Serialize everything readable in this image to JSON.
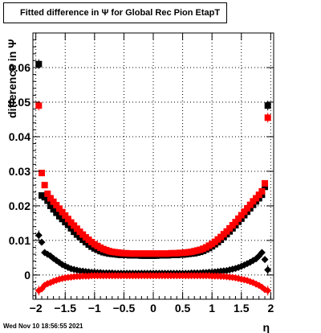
{
  "title": "Fitted difference in Ψ for Global Rec Pion EtapT",
  "footer": "Wed Nov 10 18:56:55 2021",
  "chart_data": {
    "type": "scatter",
    "title": "Fitted difference in Ψ for Global Rec Pion EtapT",
    "xlabel": "η",
    "ylabel": "difference in Ψ",
    "xlim": [
      -2.05,
      2.05
    ],
    "ylim": [
      -0.007,
      0.07
    ],
    "grid": true,
    "x_ticks": [
      -2,
      -1.5,
      -1,
      -0.5,
      0,
      0.5,
      1,
      1.5,
      2
    ],
    "x_tick_labels": [
      "−2",
      "−1.5",
      "−1",
      "−0.5",
      "0",
      "0.5",
      "1",
      "1.5",
      "2"
    ],
    "y_ticks": [
      0,
      0.01,
      0.02,
      0.03,
      0.04,
      0.05,
      0.06
    ],
    "y_tick_labels": [
      "0",
      "0.01",
      "0.02",
      "0.03",
      "0.04",
      "0.05",
      "0.06"
    ],
    "series": [
      {
        "color": "#000000",
        "marker": "square",
        "x": [
          -1.95,
          -1.9,
          -1.85,
          -1.8,
          -1.75,
          -1.7,
          -1.65,
          -1.6,
          -1.55,
          -1.5,
          -1.45,
          -1.4,
          -1.35,
          -1.3,
          -1.25,
          -1.2,
          -1.15,
          -1.1,
          -1.05,
          -1.0,
          -0.95,
          -0.9,
          -0.85,
          -0.8,
          -0.75,
          -0.7,
          -0.65,
          -0.6,
          -0.55,
          -0.5,
          -0.45,
          -0.4,
          -0.35,
          -0.3,
          -0.25,
          -0.2,
          -0.15,
          -0.1,
          -0.05,
          0.0,
          0.05,
          0.1,
          0.15,
          0.2,
          0.25,
          0.3,
          0.35,
          0.4,
          0.45,
          0.5,
          0.55,
          0.6,
          0.65,
          0.7,
          0.75,
          0.8,
          0.85,
          0.9,
          0.95,
          1.0,
          1.05,
          1.1,
          1.15,
          1.2,
          1.25,
          1.3,
          1.35,
          1.4,
          1.45,
          1.5,
          1.55,
          1.6,
          1.65,
          1.7,
          1.75,
          1.8,
          1.85,
          1.9,
          1.95
        ],
        "y": [
          0.061,
          0.023,
          0.0225,
          0.0215,
          0.02,
          0.019,
          0.018,
          0.017,
          0.0162,
          0.0153,
          0.0145,
          0.0135,
          0.0125,
          0.0117,
          0.011,
          0.0102,
          0.0095,
          0.0088,
          0.0082,
          0.0077,
          0.0073,
          0.0069,
          0.0066,
          0.0064,
          0.0062,
          0.0061,
          0.006,
          0.0059,
          0.0058,
          0.0058,
          0.0058,
          0.0057,
          0.0057,
          0.0057,
          0.0057,
          0.0056,
          0.0056,
          0.0056,
          0.0056,
          0.0056,
          0.0056,
          0.0057,
          0.0057,
          0.0057,
          0.0057,
          0.0058,
          0.0058,
          0.0058,
          0.0059,
          0.0059,
          0.006,
          0.0061,
          0.0062,
          0.0063,
          0.0065,
          0.0067,
          0.007,
          0.0074,
          0.0078,
          0.0083,
          0.0089,
          0.0095,
          0.0102,
          0.011,
          0.0118,
          0.0126,
          0.0135,
          0.0144,
          0.0154,
          0.0163,
          0.0173,
          0.0183,
          0.0193,
          0.0203,
          0.0213,
          0.0222,
          0.0232,
          0.0255,
          0.049
        ]
      },
      {
        "color": "#ff0000",
        "marker": "square",
        "x": [
          -1.95,
          -1.9,
          -1.85,
          -1.8,
          -1.75,
          -1.7,
          -1.65,
          -1.6,
          -1.55,
          -1.5,
          -1.45,
          -1.4,
          -1.35,
          -1.3,
          -1.25,
          -1.2,
          -1.15,
          -1.1,
          -1.05,
          -1.0,
          -0.95,
          -0.9,
          -0.85,
          -0.8,
          -0.75,
          -0.7,
          -0.65,
          -0.6,
          -0.55,
          -0.5,
          -0.45,
          -0.4,
          -0.35,
          -0.3,
          -0.25,
          -0.2,
          -0.15,
          -0.1,
          -0.05,
          0.0,
          0.05,
          0.1,
          0.15,
          0.2,
          0.25,
          0.3,
          0.35,
          0.4,
          0.45,
          0.5,
          0.55,
          0.6,
          0.65,
          0.7,
          0.75,
          0.8,
          0.85,
          0.9,
          0.95,
          1.0,
          1.05,
          1.1,
          1.15,
          1.2,
          1.25,
          1.3,
          1.35,
          1.4,
          1.45,
          1.5,
          1.55,
          1.6,
          1.65,
          1.7,
          1.75,
          1.8,
          1.85,
          1.9,
          1.95
        ],
        "y": [
          0.049,
          0.0295,
          0.026,
          0.0235,
          0.0222,
          0.0212,
          0.0202,
          0.0192,
          0.0182,
          0.0172,
          0.0162,
          0.0152,
          0.0143,
          0.0134,
          0.0125,
          0.0117,
          0.0109,
          0.0102,
          0.0095,
          0.0089,
          0.0084,
          0.0079,
          0.0075,
          0.0072,
          0.0069,
          0.0067,
          0.0066,
          0.0065,
          0.0064,
          0.0063,
          0.0063,
          0.0062,
          0.0062,
          0.0062,
          0.0062,
          0.0062,
          0.0062,
          0.0062,
          0.0062,
          0.0062,
          0.0062,
          0.0062,
          0.0062,
          0.0062,
          0.0062,
          0.0063,
          0.0063,
          0.0063,
          0.0064,
          0.0064,
          0.0065,
          0.0066,
          0.0067,
          0.0069,
          0.0071,
          0.0073,
          0.0076,
          0.008,
          0.0085,
          0.009,
          0.0096,
          0.0103,
          0.011,
          0.0118,
          0.0126,
          0.0135,
          0.0144,
          0.0153,
          0.0163,
          0.0173,
          0.0183,
          0.0193,
          0.0203,
          0.0213,
          0.0222,
          0.0232,
          0.0242,
          0.0265,
          0.0455
        ]
      },
      {
        "color": "#000000",
        "marker": "diamond",
        "x": [
          -1.95,
          -1.9,
          -1.85,
          -1.8,
          -1.75,
          -1.7,
          -1.65,
          -1.6,
          -1.55,
          -1.5,
          -1.45,
          -1.4,
          -1.35,
          -1.3,
          -1.25,
          -1.2,
          -1.15,
          -1.1,
          -1.05,
          -1.0,
          -0.95,
          -0.9,
          -0.85,
          -0.8,
          -0.75,
          -0.7,
          -0.65,
          -0.6,
          -0.55,
          -0.5,
          -0.45,
          -0.4,
          -0.35,
          -0.3,
          -0.25,
          -0.2,
          -0.15,
          -0.1,
          -0.05,
          0.0,
          0.05,
          0.1,
          0.15,
          0.2,
          0.25,
          0.3,
          0.35,
          0.4,
          0.45,
          0.5,
          0.55,
          0.6,
          0.65,
          0.7,
          0.75,
          0.8,
          0.85,
          0.9,
          0.95,
          1.0,
          1.05,
          1.1,
          1.15,
          1.2,
          1.25,
          1.3,
          1.35,
          1.4,
          1.45,
          1.5,
          1.55,
          1.6,
          1.65,
          1.7,
          1.75,
          1.8,
          1.85,
          1.9,
          1.95
        ],
        "y": [
          0.0115,
          0.0095,
          0.0065,
          0.006,
          0.0055,
          0.0048,
          0.0042,
          0.0036,
          0.003,
          0.0026,
          0.0022,
          0.0018,
          0.0016,
          0.0014,
          0.0012,
          0.0011,
          0.001,
          0.0009,
          0.0008,
          0.0008,
          0.0007,
          0.0007,
          0.0006,
          0.0006,
          0.0006,
          0.0006,
          0.0005,
          0.0005,
          0.0005,
          0.0005,
          0.0005,
          0.0005,
          0.0005,
          0.0005,
          0.0005,
          0.0005,
          0.0005,
          0.0005,
          0.0005,
          0.0005,
          0.0005,
          0.0005,
          0.0005,
          0.0005,
          0.0005,
          0.0005,
          0.0005,
          0.0005,
          0.0005,
          0.0005,
          0.0005,
          0.0005,
          0.0006,
          0.0006,
          0.0006,
          0.0006,
          0.0007,
          0.0007,
          0.0008,
          0.0008,
          0.0009,
          0.001,
          0.0011,
          0.0012,
          0.0013,
          0.0015,
          0.0017,
          0.0019,
          0.0022,
          0.0025,
          0.0029,
          0.0033,
          0.0037,
          0.0042,
          0.0047,
          0.0055,
          0.0065,
          0.0045,
          0.0015
        ]
      },
      {
        "color": "#ff0000",
        "marker": "diamond",
        "x": [
          -1.95,
          -1.9,
          -1.85,
          -1.8,
          -1.75,
          -1.7,
          -1.65,
          -1.6,
          -1.55,
          -1.5,
          -1.45,
          -1.4,
          -1.35,
          -1.3,
          -1.25,
          -1.2,
          -1.15,
          -1.1,
          -1.05,
          -1.0,
          -0.95,
          -0.9,
          -0.85,
          -0.8,
          -0.75,
          -0.7,
          -0.65,
          -0.6,
          -0.55,
          -0.5,
          -0.45,
          -0.4,
          -0.35,
          -0.3,
          -0.25,
          -0.2,
          -0.15,
          -0.1,
          -0.05,
          0.0,
          0.05,
          0.1,
          0.15,
          0.2,
          0.25,
          0.3,
          0.35,
          0.4,
          0.45,
          0.5,
          0.55,
          0.6,
          0.65,
          0.7,
          0.75,
          0.8,
          0.85,
          0.9,
          0.95,
          1.0,
          1.05,
          1.1,
          1.15,
          1.2,
          1.25,
          1.3,
          1.35,
          1.4,
          1.45,
          1.5,
          1.55,
          1.6,
          1.65,
          1.7,
          1.75,
          1.8,
          1.85,
          1.9,
          1.95
        ],
        "y": [
          -0.0045,
          -0.004,
          -0.003,
          -0.0025,
          -0.0022,
          -0.0018,
          -0.0015,
          -0.0012,
          -0.001,
          -0.0008,
          -0.0007,
          -0.0006,
          -0.0005,
          -0.0004,
          -0.0004,
          -0.0003,
          -0.0003,
          -0.0003,
          -0.0002,
          -0.0002,
          -0.0002,
          -0.0002,
          -0.0002,
          -0.0002,
          -0.0002,
          -0.0002,
          -0.0002,
          -0.0002,
          -0.0002,
          -0.0002,
          -0.0002,
          -0.0002,
          -0.0002,
          -0.0002,
          -0.0002,
          -0.0002,
          -0.0002,
          -0.0002,
          -0.0002,
          -0.0002,
          -0.0002,
          -0.0002,
          -0.0002,
          -0.0002,
          -0.0002,
          -0.0002,
          -0.0002,
          -0.0002,
          -0.0002,
          -0.0002,
          -0.0002,
          -0.0002,
          -0.0002,
          -0.0002,
          -0.0002,
          -0.0002,
          -0.0002,
          -0.0002,
          -0.0002,
          -0.0003,
          -0.0003,
          -0.0003,
          -0.0004,
          -0.0004,
          -0.0005,
          -0.0006,
          -0.0007,
          -0.0008,
          -0.001,
          -0.0012,
          -0.0014,
          -0.0016,
          -0.0019,
          -0.0022,
          -0.0026,
          -0.003,
          -0.0035,
          -0.0042,
          -0.0045
        ]
      }
    ]
  }
}
